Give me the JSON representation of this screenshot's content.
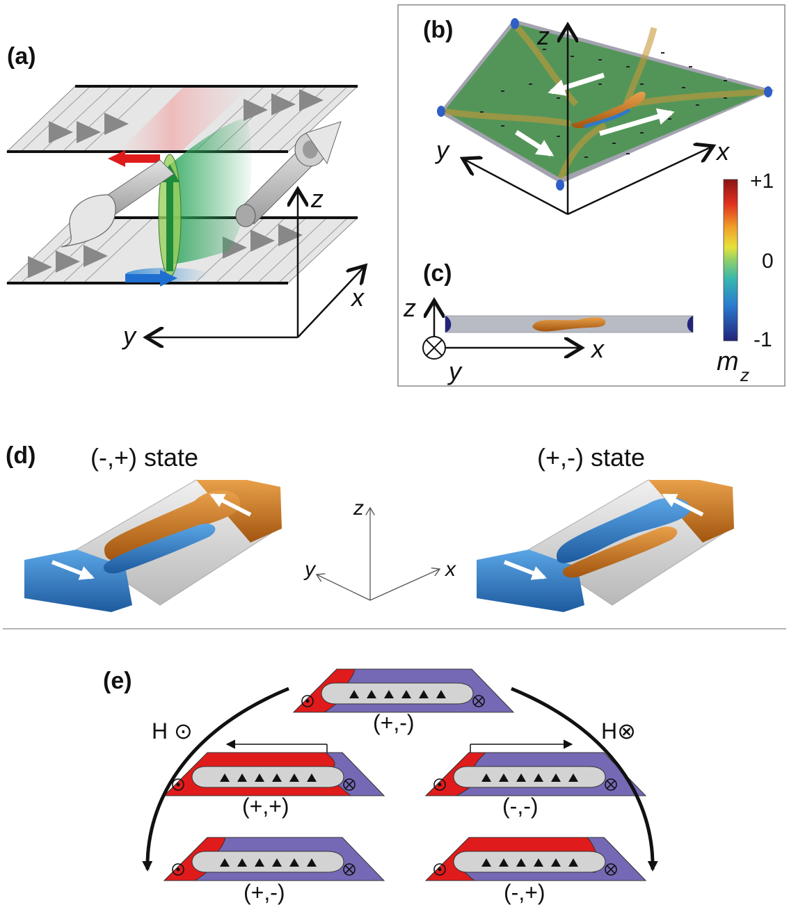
{
  "panels": {
    "a": {
      "label": "(a)",
      "axes": {
        "x": "x",
        "y": "y",
        "z": "z"
      }
    },
    "b": {
      "label": "(b)",
      "axes": {
        "x": "x",
        "y": "y",
        "z": "z"
      }
    },
    "c": {
      "label": "(c)",
      "axes": {
        "x": "x",
        "y": "y",
        "z": "z"
      }
    },
    "colorbar": {
      "max": "+1",
      "mid": "0",
      "min": "-1",
      "symbol": "m",
      "subscript": "z"
    },
    "d": {
      "label": "(d)",
      "left_state": "(-,+) state",
      "right_state": "(+,-) state",
      "axes": {
        "x": "x",
        "y": "y",
        "z": "z"
      }
    },
    "e": {
      "label": "(e)",
      "field_up": "H ⊙",
      "field_down": "H⊗",
      "states": [
        "(+,-)",
        "(+,+)",
        "(-,-)",
        "(+,-)",
        "(-,+)"
      ]
    }
  },
  "colors": {
    "red": "#e01b1b",
    "purple": "#7569b5",
    "green": "#2e9a48",
    "blue": "#2f79c6",
    "orange": "#c9731d",
    "grey": "#c8c8c8"
  }
}
